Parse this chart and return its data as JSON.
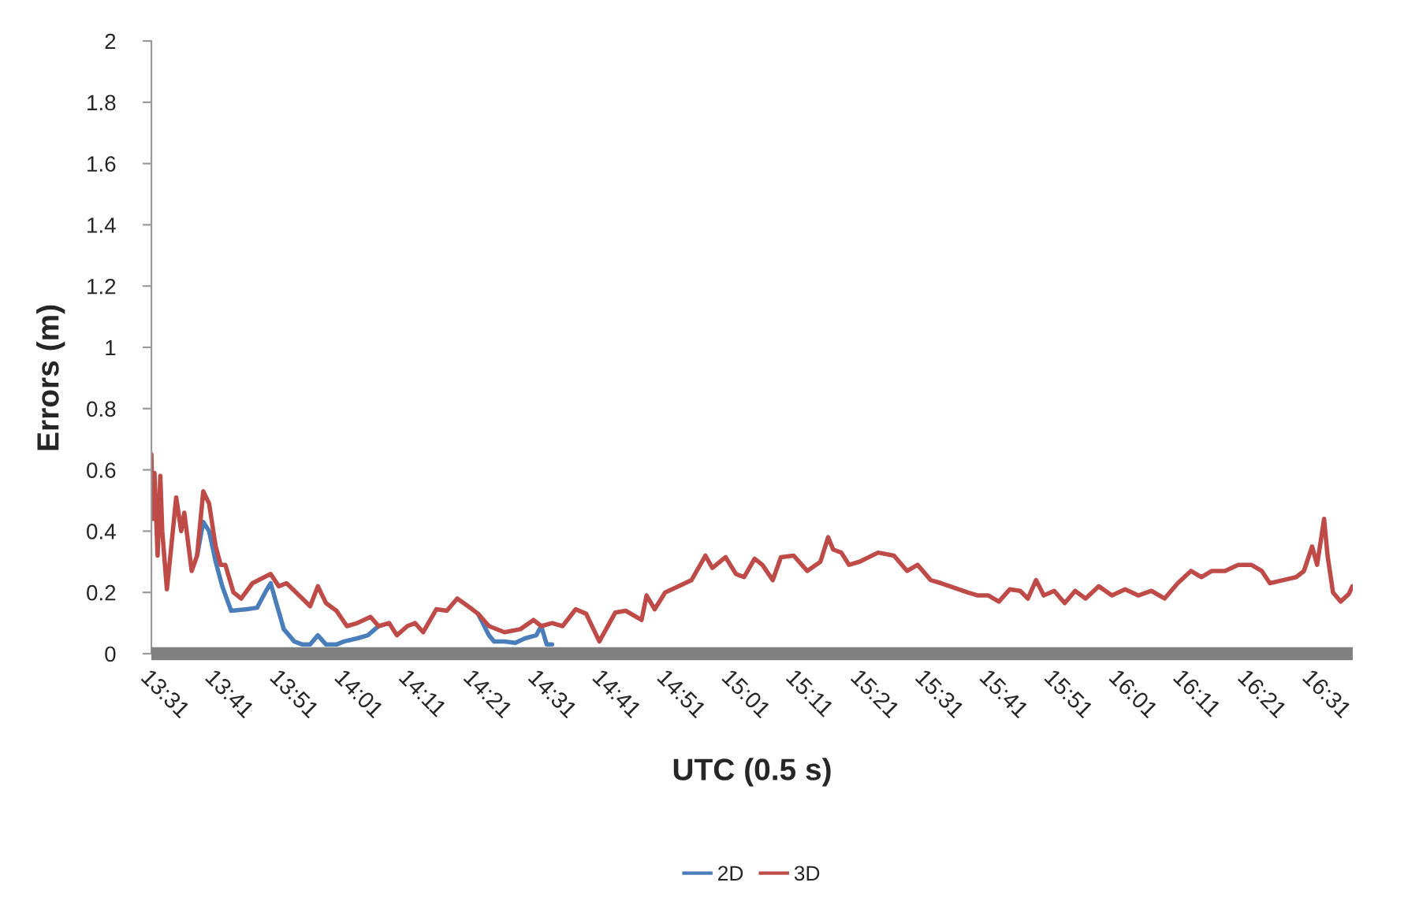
{
  "chart_data": {
    "type": "line",
    "xlabel": "UTC (0.5 s)",
    "ylabel": "Errors (m)",
    "xlim": [
      13.517,
      16.62
    ],
    "ylim": [
      0,
      2
    ],
    "xticks": [
      {
        "value": 13.517,
        "label": "13:31"
      },
      {
        "value": 13.683,
        "label": "13:41"
      },
      {
        "value": 13.85,
        "label": "13:51"
      },
      {
        "value": 14.017,
        "label": "14:01"
      },
      {
        "value": 14.183,
        "label": "14:11"
      },
      {
        "value": 14.35,
        "label": "14:21"
      },
      {
        "value": 14.517,
        "label": "14:31"
      },
      {
        "value": 14.683,
        "label": "14:41"
      },
      {
        "value": 14.85,
        "label": "14:51"
      },
      {
        "value": 15.017,
        "label": "15:01"
      },
      {
        "value": 15.183,
        "label": "15:11"
      },
      {
        "value": 15.35,
        "label": "15:21"
      },
      {
        "value": 15.517,
        "label": "15:31"
      },
      {
        "value": 15.683,
        "label": "15:41"
      },
      {
        "value": 15.85,
        "label": "15:51"
      },
      {
        "value": 16.017,
        "label": "16:01"
      },
      {
        "value": 16.183,
        "label": "16:11"
      },
      {
        "value": 16.35,
        "label": "16:21"
      },
      {
        "value": 16.517,
        "label": "16:31"
      }
    ],
    "yticks": [
      0,
      0.2,
      0.4,
      0.6,
      0.8,
      1,
      1.2,
      1.4,
      1.6,
      1.8,
      2
    ],
    "grid": false,
    "legend": "bottom",
    "series": [
      {
        "name": "2D",
        "color": "#4a7ebb",
        "x": [
          13.635,
          13.651,
          13.666,
          13.683,
          13.7,
          13.723,
          13.764,
          13.79,
          13.811,
          13.825,
          13.843,
          13.859,
          13.886,
          13.907,
          13.927,
          13.947,
          13.968,
          13.995,
          14.015,
          14.049,
          14.076,
          14.104,
          14.2,
          14.361,
          14.389,
          14.402,
          14.429,
          14.457,
          14.482,
          14.511,
          14.524,
          14.538,
          14.552
        ],
        "values": [
          0.32,
          0.43,
          0.4,
          0.3,
          0.22,
          0.14,
          0.145,
          0.15,
          0.2,
          0.23,
          0.15,
          0.08,
          0.04,
          0.03,
          0.03,
          0.06,
          0.03,
          0.03,
          0.04,
          0.05,
          0.06,
          0.09,
          null,
          0.13,
          0.06,
          0.04,
          0.04,
          0.035,
          0.05,
          0.06,
          0.09,
          0.03,
          0.03
        ]
      },
      {
        "name": "3D",
        "color": "#be4b48",
        "x": [
          13.517,
          13.52,
          13.525,
          13.533,
          13.54,
          13.545,
          13.557,
          13.566,
          13.581,
          13.594,
          13.602,
          13.621,
          13.635,
          13.651,
          13.666,
          13.683,
          13.696,
          13.708,
          13.729,
          13.749,
          13.778,
          13.825,
          13.846,
          13.866,
          13.907,
          13.927,
          13.947,
          13.968,
          13.995,
          14.022,
          14.049,
          14.083,
          14.104,
          14.131,
          14.151,
          14.178,
          14.198,
          14.219,
          14.253,
          14.28,
          14.307,
          14.335,
          14.361,
          14.389,
          14.429,
          14.47,
          14.504,
          14.524,
          14.552,
          14.579,
          14.613,
          14.64,
          14.674,
          14.715,
          14.742,
          14.783,
          14.796,
          14.817,
          14.844,
          14.878,
          14.912,
          14.948,
          14.966,
          15.0,
          15.027,
          15.048,
          15.075,
          15.095,
          15.122,
          15.143,
          15.176,
          15.211,
          15.245,
          15.265,
          15.278,
          15.299,
          15.319,
          15.346,
          15.394,
          15.435,
          15.469,
          15.496,
          15.53,
          15.557,
          15.591,
          15.625,
          15.652,
          15.679,
          15.706,
          15.734,
          15.761,
          15.781,
          15.802,
          15.822,
          15.849,
          15.876,
          15.903,
          15.93,
          15.964,
          15.998,
          16.032,
          16.066,
          16.1,
          16.134,
          16.168,
          16.202,
          16.229,
          16.256,
          16.29,
          16.324,
          16.358,
          16.385,
          16.406,
          16.44,
          16.474,
          16.494,
          16.515,
          16.528,
          16.546,
          16.555,
          16.569,
          16.589,
          16.61,
          16.619
        ],
        "values": [
          0.65,
          0.44,
          0.59,
          0.32,
          0.58,
          0.4,
          0.21,
          0.32,
          0.51,
          0.4,
          0.46,
          0.27,
          0.32,
          0.53,
          0.49,
          0.35,
          0.29,
          0.29,
          0.2,
          0.18,
          0.23,
          0.26,
          0.22,
          0.23,
          0.18,
          0.155,
          0.22,
          0.165,
          0.14,
          0.09,
          0.1,
          0.12,
          0.09,
          0.1,
          0.06,
          0.09,
          0.1,
          0.07,
          0.145,
          0.14,
          0.18,
          0.155,
          0.13,
          0.09,
          0.07,
          0.08,
          0.11,
          0.09,
          0.1,
          0.09,
          0.145,
          0.13,
          0.04,
          0.134,
          0.14,
          0.11,
          0.19,
          0.145,
          0.2,
          0.22,
          0.24,
          0.32,
          0.28,
          0.315,
          0.26,
          0.25,
          0.31,
          0.29,
          0.24,
          0.315,
          0.32,
          0.27,
          0.3,
          0.38,
          0.34,
          0.33,
          0.29,
          0.3,
          0.33,
          0.32,
          0.27,
          0.29,
          0.24,
          0.23,
          0.215,
          0.2,
          0.19,
          0.19,
          0.17,
          0.21,
          0.205,
          0.18,
          0.24,
          0.19,
          0.205,
          0.165,
          0.205,
          0.18,
          0.22,
          0.19,
          0.21,
          0.19,
          0.205,
          0.18,
          0.23,
          0.27,
          0.25,
          0.27,
          0.27,
          0.29,
          0.29,
          0.27,
          0.23,
          0.24,
          0.25,
          0.27,
          0.35,
          0.29,
          0.44,
          0.32,
          0.2,
          0.17,
          0.195,
          0.22
        ]
      }
    ]
  }
}
